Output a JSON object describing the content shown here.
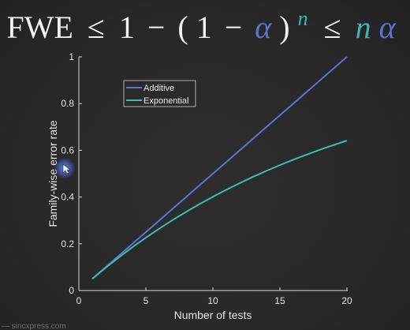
{
  "formula": {
    "fwe": "FWE",
    "leq1": "≤",
    "one": "1",
    "minus1": "−",
    "open": "(",
    "one2": "1",
    "minus2": "−",
    "alpha": "α",
    "close": ")",
    "n_exp": "n",
    "leq2": "≤",
    "n": "n",
    "alpha2": "α",
    "colors": {
      "text": "#f2f2f2",
      "alpha": "#5b74c9",
      "n": "#3fb5ad"
    }
  },
  "watermark": "— sincxpress.com",
  "chart_data": {
    "type": "line",
    "xlabel": "Number of tests",
    "ylabel": "Family-wise error rate",
    "xlim": [
      0,
      20
    ],
    "ylim": [
      0,
      1
    ],
    "xticks": [
      0,
      5,
      10,
      15,
      20
    ],
    "yticks": [
      0,
      0.2,
      0.4,
      0.6,
      0.8,
      1
    ],
    "legend_position": "top-left",
    "grid": false,
    "series": [
      {
        "name": "Additive",
        "color": "#5b74d6",
        "x": [
          1,
          2,
          3,
          4,
          5,
          6,
          7,
          8,
          9,
          10,
          11,
          12,
          13,
          14,
          15,
          16,
          17,
          18,
          19,
          20
        ],
        "y": [
          0.05,
          0.1,
          0.15,
          0.2,
          0.25,
          0.3,
          0.35,
          0.4,
          0.45,
          0.5,
          0.55,
          0.6,
          0.65,
          0.7,
          0.75,
          0.8,
          0.85,
          0.9,
          0.95,
          1.0
        ]
      },
      {
        "name": "Exponential",
        "color": "#3fbcb4",
        "x": [
          1,
          2,
          3,
          4,
          5,
          6,
          7,
          8,
          9,
          10,
          11,
          12,
          13,
          14,
          15,
          16,
          17,
          18,
          19,
          20
        ],
        "y": [
          0.05,
          0.0975,
          0.1426,
          0.1855,
          0.2262,
          0.2649,
          0.3017,
          0.3366,
          0.3698,
          0.4013,
          0.4312,
          0.4596,
          0.4867,
          0.5123,
          0.5367,
          0.5599,
          0.5819,
          0.6028,
          0.6226,
          0.6415
        ]
      }
    ]
  }
}
